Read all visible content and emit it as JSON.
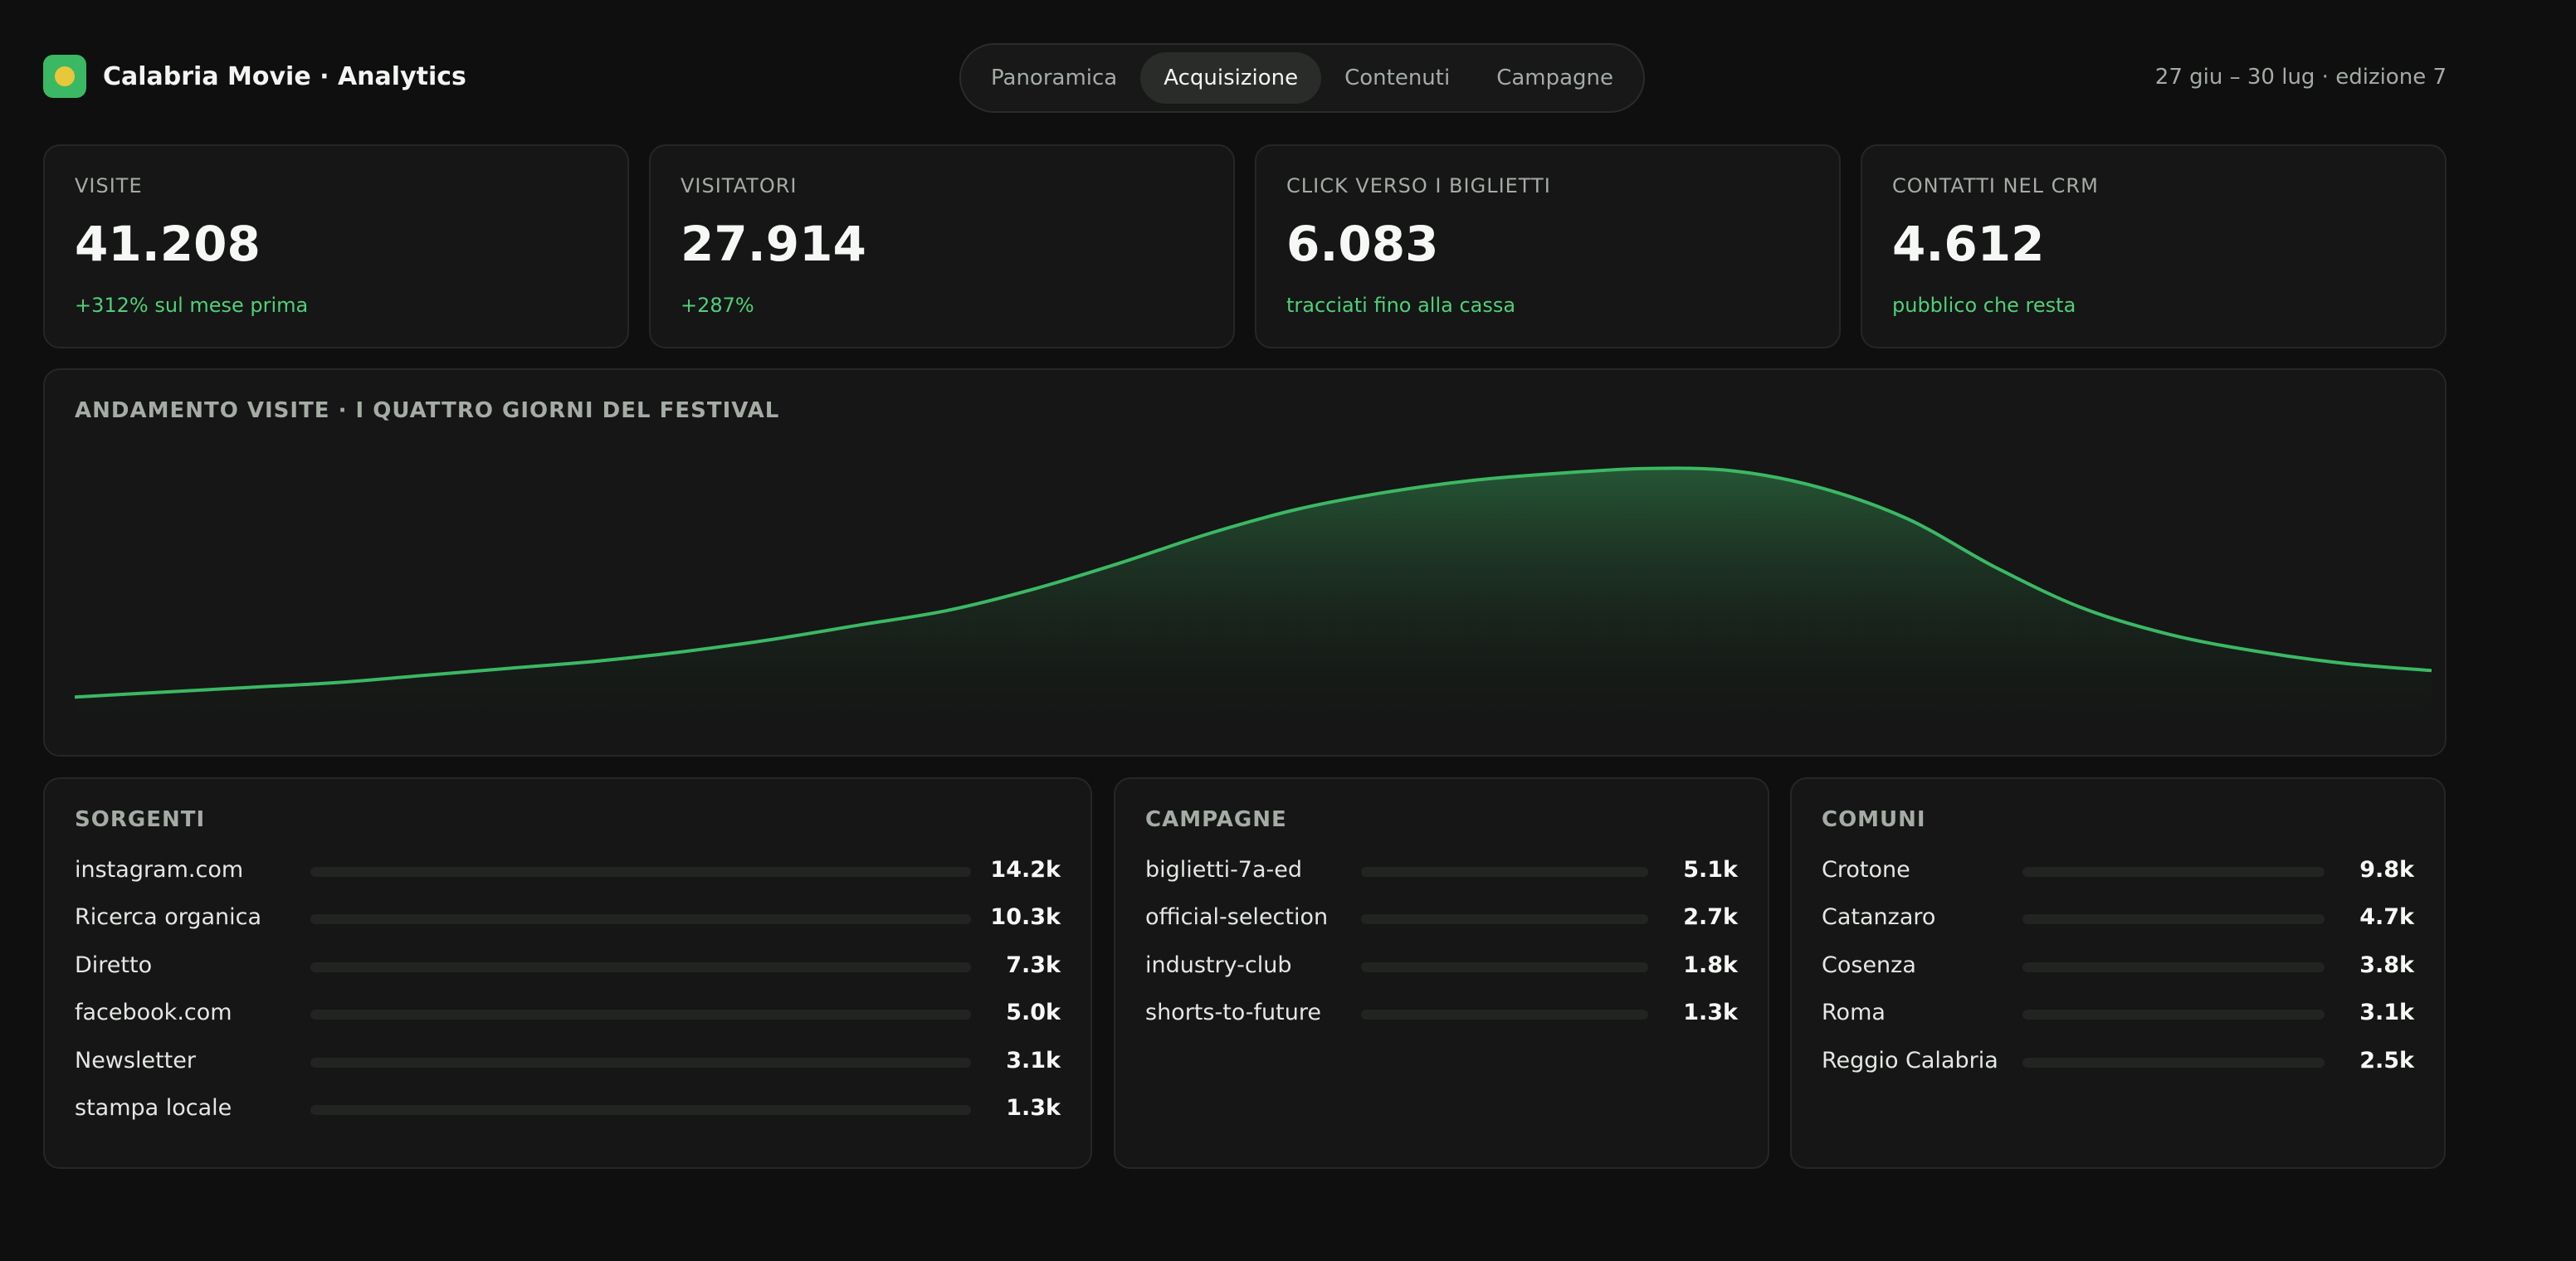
{
  "header": {
    "brand": "Calabria Movie · Analytics",
    "tabs": [
      {
        "label": "Panoramica",
        "active": false
      },
      {
        "label": "Acquisizione",
        "active": true
      },
      {
        "label": "Contenuti",
        "active": false
      },
      {
        "label": "Campagne",
        "active": false
      }
    ],
    "date_range": "27 giu – 30 lug · edizione 7"
  },
  "kpis": [
    {
      "label": "VISITE",
      "value": "41.208",
      "sub": "+312% sul mese prima"
    },
    {
      "label": "VISITATORI",
      "value": "27.914",
      "sub": "+287%"
    },
    {
      "label": "CLICK VERSO I BIGLIETTI",
      "value": "6.083",
      "sub": "tracciati fino alla cassa"
    },
    {
      "label": "CONTATTI NEL CRM",
      "value": "4.612",
      "sub": "pubblico che resta"
    }
  ],
  "trend": {
    "title": "ANDAMENTO VISITE · I QUATTRO GIORNI DEL FESTIVAL",
    "chart_data": {
      "type": "area",
      "title": "ANDAMENTO VISITE · I QUATTRO GIORNI DEL FESTIVAL",
      "xlabel": "",
      "ylabel": "",
      "values": [
        2,
        4,
        6,
        8,
        11,
        14,
        17,
        21,
        26,
        32,
        38,
        47,
        58,
        70,
        80,
        87,
        92,
        95,
        97,
        96,
        89,
        76,
        56,
        39,
        28,
        21,
        16,
        13
      ],
      "ylim": [
        0,
        100
      ],
      "grid": false,
      "colors": {
        "line": "#3bb864",
        "fill_top": "#2b6b3f"
      }
    }
  },
  "panels": {
    "sources": {
      "title": "SORGENTI",
      "items": [
        {
          "name": "instagram.com",
          "value": "14.2k"
        },
        {
          "name": "Ricerca organica",
          "value": "10.3k"
        },
        {
          "name": "Diretto",
          "value": "7.3k"
        },
        {
          "name": "facebook.com",
          "value": "5.0k"
        },
        {
          "name": "Newsletter",
          "value": "3.1k"
        },
        {
          "name": "stampa locale",
          "value": "1.3k"
        }
      ]
    },
    "campaigns": {
      "title": "CAMPAGNE",
      "items": [
        {
          "name": "biglietti-7a-ed",
          "value": "5.1k"
        },
        {
          "name": "official-selection",
          "value": "2.7k"
        },
        {
          "name": "industry-club",
          "value": "1.8k"
        },
        {
          "name": "shorts-to-future",
          "value": "1.3k"
        }
      ]
    },
    "towns": {
      "title": "COMUNI",
      "items": [
        {
          "name": "Crotone",
          "value": "9.8k"
        },
        {
          "name": "Catanzaro",
          "value": "4.7k"
        },
        {
          "name": "Cosenza",
          "value": "3.8k"
        },
        {
          "name": "Roma",
          "value": "3.1k"
        },
        {
          "name": "Reggio Calabria",
          "value": "2.5k"
        }
      ]
    }
  }
}
